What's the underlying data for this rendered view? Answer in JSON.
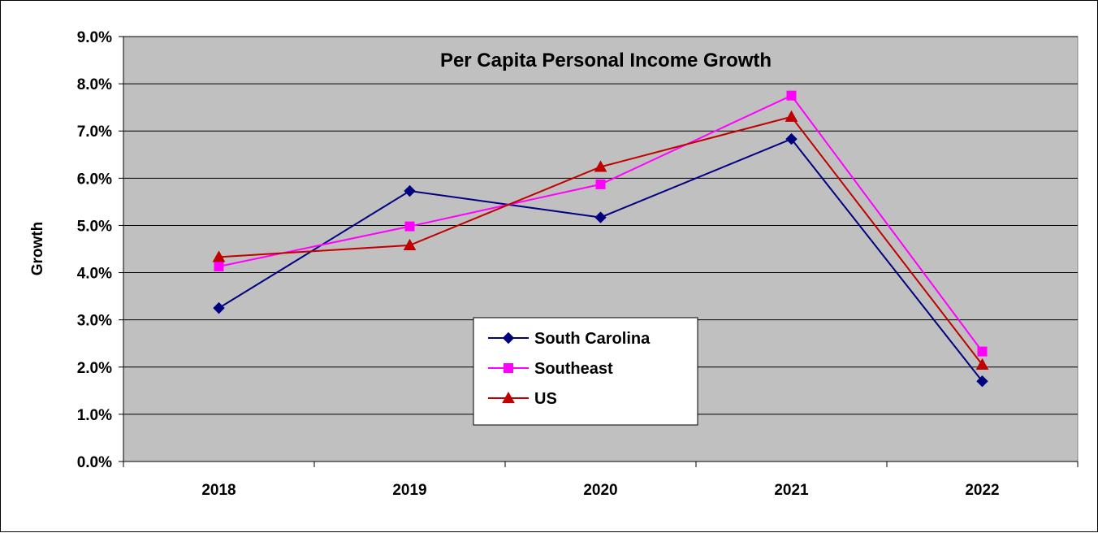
{
  "chart_data": {
    "type": "line",
    "title": "Per Capita Personal Income Growth",
    "xlabel": "",
    "ylabel": "Growth",
    "categories": [
      "2018",
      "2019",
      "2020",
      "2021",
      "2022"
    ],
    "ylim": [
      0,
      9
    ],
    "y_ticks": [
      "0.0%",
      "1.0%",
      "2.0%",
      "3.0%",
      "4.0%",
      "5.0%",
      "6.0%",
      "7.0%",
      "8.0%",
      "9.0%"
    ],
    "y_unit": "%",
    "grid": true,
    "legend_position": "center-bottom",
    "plot_background": "#c0c0c0",
    "series": [
      {
        "name": "South Carolina",
        "values": [
          3.25,
          5.73,
          5.17,
          6.83,
          1.7
        ],
        "color": "#000080",
        "marker": "diamond"
      },
      {
        "name": "Southeast",
        "values": [
          4.13,
          4.98,
          5.87,
          7.75,
          2.33
        ],
        "color": "#ff00ff",
        "marker": "square"
      },
      {
        "name": "US",
        "values": [
          4.33,
          4.58,
          6.24,
          7.3,
          2.05
        ],
        "color": "#c00000",
        "marker": "triangle"
      }
    ]
  }
}
